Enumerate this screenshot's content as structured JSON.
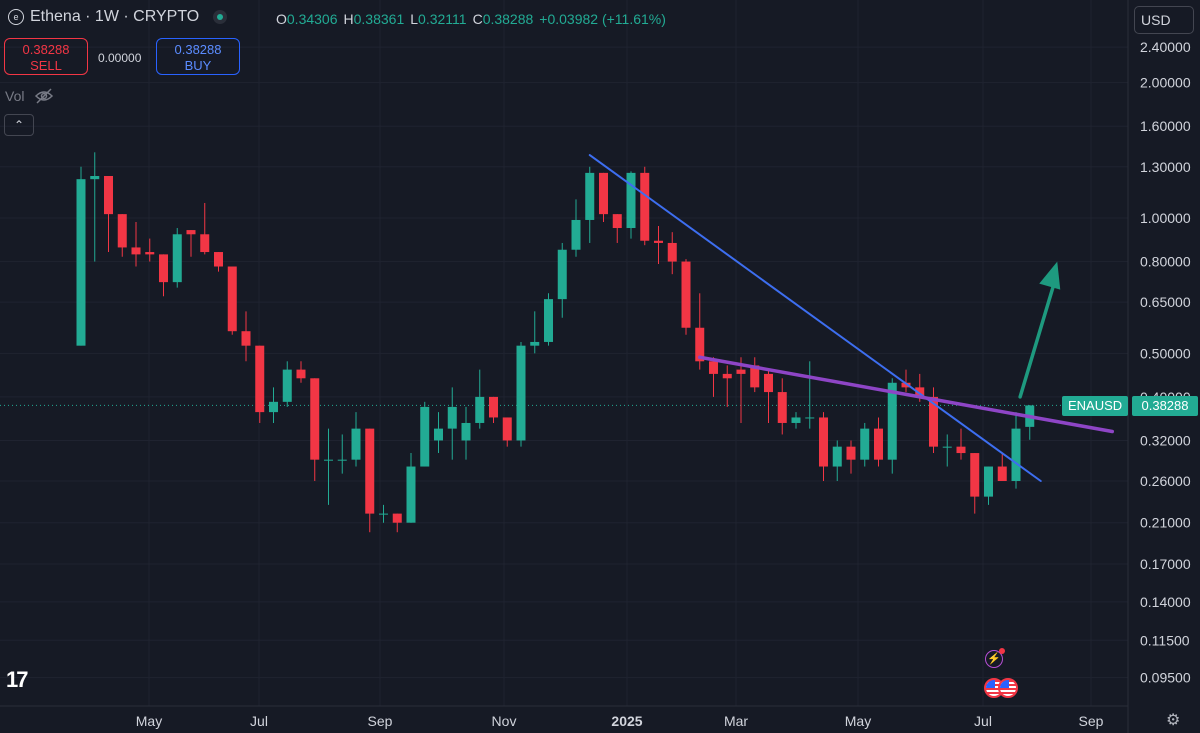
{
  "header": {
    "title": "Ethena · 1W · CRYPTO",
    "logo_icon": "ethena-logo-icon",
    "market_status_icon": "market-open-dot-icon",
    "ohlc": {
      "o_label": "O",
      "o_value": "0.34306",
      "h_label": "H",
      "h_value": "0.38361",
      "l_label": "L",
      "l_value": "0.32111",
      "c_label": "C",
      "c_value": "0.38288",
      "change": "+0.03982 (+11.61%)"
    }
  },
  "trade": {
    "sell_price": "0.38288",
    "sell_label": "SELL",
    "spread": "0.00000",
    "buy_price": "0.38288",
    "buy_label": "BUY"
  },
  "volume": {
    "label": "Vol",
    "toggle_icon": "eye-hidden-icon"
  },
  "collapse": {
    "icon": "chevron-up-icon",
    "glyph": "⌃"
  },
  "currency": "USD",
  "footer": {
    "tv_logo": "17",
    "settings_icon": "gear-icon",
    "gear_glyph": "⚙"
  },
  "last_price": {
    "symbol": "ENAUSD",
    "value": "0.38288"
  },
  "colors": {
    "up": "#22ab94",
    "down": "#f23645",
    "background": "#161a25",
    "trendline_blue": "#3d6ef0",
    "trendline_purple": "#8e45c6",
    "arrow": "#1e9a7f",
    "grid": "#1f2330"
  },
  "events": [
    "flash-event-icon",
    "us-flag-event-icon"
  ],
  "chart_data": {
    "type": "candlestick",
    "interval": "1W",
    "scale": "log",
    "y_ticks": [
      "2.40000",
      "2.00000",
      "1.60000",
      "1.30000",
      "1.00000",
      "0.80000",
      "0.65000",
      "0.50000",
      "0.40000",
      "0.32000",
      "0.26000",
      "0.21000",
      "0.17000",
      "0.14000",
      "0.11500",
      "0.09500"
    ],
    "x_ticks": [
      "May",
      "Jul",
      "Sep",
      "Nov",
      "2025",
      "Mar",
      "May",
      "Jul",
      "Sep"
    ],
    "candles": [
      {
        "o": 0.52,
        "h": 1.3,
        "l": 0.52,
        "c": 1.22
      },
      {
        "o": 1.22,
        "h": 1.4,
        "l": 0.8,
        "c": 1.24
      },
      {
        "o": 1.24,
        "h": 1.24,
        "l": 0.84,
        "c": 1.02
      },
      {
        "o": 1.02,
        "h": 1.02,
        "l": 0.82,
        "c": 0.86
      },
      {
        "o": 0.86,
        "h": 0.98,
        "l": 0.78,
        "c": 0.83
      },
      {
        "o": 0.84,
        "h": 0.9,
        "l": 0.8,
        "c": 0.83
      },
      {
        "o": 0.83,
        "h": 0.83,
        "l": 0.67,
        "c": 0.72
      },
      {
        "o": 0.72,
        "h": 0.95,
        "l": 0.7,
        "c": 0.92
      },
      {
        "o": 0.94,
        "h": 0.94,
        "l": 0.82,
        "c": 0.92
      },
      {
        "o": 0.92,
        "h": 1.08,
        "l": 0.83,
        "c": 0.84
      },
      {
        "o": 0.84,
        "h": 0.84,
        "l": 0.76,
        "c": 0.78
      },
      {
        "o": 0.78,
        "h": 0.78,
        "l": 0.55,
        "c": 0.56
      },
      {
        "o": 0.56,
        "h": 0.62,
        "l": 0.48,
        "c": 0.52
      },
      {
        "o": 0.52,
        "h": 0.52,
        "l": 0.35,
        "c": 0.37
      },
      {
        "o": 0.37,
        "h": 0.42,
        "l": 0.35,
        "c": 0.39
      },
      {
        "o": 0.39,
        "h": 0.48,
        "l": 0.38,
        "c": 0.46
      },
      {
        "o": 0.46,
        "h": 0.48,
        "l": 0.43,
        "c": 0.44
      },
      {
        "o": 0.44,
        "h": 0.44,
        "l": 0.26,
        "c": 0.29
      },
      {
        "o": 0.29,
        "h": 0.34,
        "l": 0.23,
        "c": 0.29
      },
      {
        "o": 0.29,
        "h": 0.33,
        "l": 0.27,
        "c": 0.29
      },
      {
        "o": 0.29,
        "h": 0.37,
        "l": 0.28,
        "c": 0.34
      },
      {
        "o": 0.34,
        "h": 0.34,
        "l": 0.2,
        "c": 0.22
      },
      {
        "o": 0.22,
        "h": 0.23,
        "l": 0.21,
        "c": 0.22
      },
      {
        "o": 0.22,
        "h": 0.22,
        "l": 0.2,
        "c": 0.21
      },
      {
        "o": 0.21,
        "h": 0.3,
        "l": 0.21,
        "c": 0.28
      },
      {
        "o": 0.28,
        "h": 0.39,
        "l": 0.28,
        "c": 0.38
      },
      {
        "o": 0.32,
        "h": 0.37,
        "l": 0.3,
        "c": 0.34
      },
      {
        "o": 0.34,
        "h": 0.42,
        "l": 0.29,
        "c": 0.38
      },
      {
        "o": 0.32,
        "h": 0.38,
        "l": 0.29,
        "c": 0.35
      },
      {
        "o": 0.35,
        "h": 0.46,
        "l": 0.34,
        "c": 0.4
      },
      {
        "o": 0.4,
        "h": 0.4,
        "l": 0.35,
        "c": 0.36
      },
      {
        "o": 0.36,
        "h": 0.36,
        "l": 0.31,
        "c": 0.32
      },
      {
        "o": 0.32,
        "h": 0.53,
        "l": 0.31,
        "c": 0.52
      },
      {
        "o": 0.52,
        "h": 0.62,
        "l": 0.5,
        "c": 0.53
      },
      {
        "o": 0.53,
        "h": 0.68,
        "l": 0.52,
        "c": 0.66
      },
      {
        "o": 0.66,
        "h": 0.88,
        "l": 0.6,
        "c": 0.85
      },
      {
        "o": 0.85,
        "h": 1.1,
        "l": 0.82,
        "c": 0.99
      },
      {
        "o": 0.99,
        "h": 1.3,
        "l": 0.88,
        "c": 1.26
      },
      {
        "o": 1.26,
        "h": 1.26,
        "l": 0.98,
        "c": 1.02
      },
      {
        "o": 1.02,
        "h": 1.02,
        "l": 0.88,
        "c": 0.95
      },
      {
        "o": 0.95,
        "h": 1.27,
        "l": 0.9,
        "c": 1.26
      },
      {
        "o": 1.26,
        "h": 1.3,
        "l": 0.87,
        "c": 0.89
      },
      {
        "o": 0.89,
        "h": 0.96,
        "l": 0.79,
        "c": 0.88
      },
      {
        "o": 0.88,
        "h": 0.93,
        "l": 0.75,
        "c": 0.8
      },
      {
        "o": 0.8,
        "h": 0.81,
        "l": 0.55,
        "c": 0.57
      },
      {
        "o": 0.57,
        "h": 0.68,
        "l": 0.46,
        "c": 0.48
      },
      {
        "o": 0.48,
        "h": 0.49,
        "l": 0.4,
        "c": 0.45
      },
      {
        "o": 0.45,
        "h": 0.47,
        "l": 0.38,
        "c": 0.44
      },
      {
        "o": 0.46,
        "h": 0.49,
        "l": 0.35,
        "c": 0.45
      },
      {
        "o": 0.47,
        "h": 0.49,
        "l": 0.41,
        "c": 0.42
      },
      {
        "o": 0.45,
        "h": 0.46,
        "l": 0.35,
        "c": 0.41
      },
      {
        "o": 0.41,
        "h": 0.44,
        "l": 0.33,
        "c": 0.35
      },
      {
        "o": 0.35,
        "h": 0.37,
        "l": 0.34,
        "c": 0.36
      },
      {
        "o": 0.36,
        "h": 0.48,
        "l": 0.34,
        "c": 0.36
      },
      {
        "o": 0.36,
        "h": 0.37,
        "l": 0.26,
        "c": 0.28
      },
      {
        "o": 0.28,
        "h": 0.32,
        "l": 0.26,
        "c": 0.31
      },
      {
        "o": 0.31,
        "h": 0.32,
        "l": 0.27,
        "c": 0.29
      },
      {
        "o": 0.29,
        "h": 0.35,
        "l": 0.28,
        "c": 0.34
      },
      {
        "o": 0.34,
        "h": 0.36,
        "l": 0.28,
        "c": 0.29
      },
      {
        "o": 0.29,
        "h": 0.44,
        "l": 0.27,
        "c": 0.43
      },
      {
        "o": 0.43,
        "h": 0.46,
        "l": 0.41,
        "c": 0.42
      },
      {
        "o": 0.42,
        "h": 0.45,
        "l": 0.39,
        "c": 0.4
      },
      {
        "o": 0.4,
        "h": 0.42,
        "l": 0.3,
        "c": 0.31
      },
      {
        "o": 0.31,
        "h": 0.33,
        "l": 0.28,
        "c": 0.31
      },
      {
        "o": 0.31,
        "h": 0.34,
        "l": 0.29,
        "c": 0.3
      },
      {
        "o": 0.3,
        "h": 0.3,
        "l": 0.22,
        "c": 0.24
      },
      {
        "o": 0.24,
        "h": 0.28,
        "l": 0.23,
        "c": 0.28
      },
      {
        "o": 0.28,
        "h": 0.3,
        "l": 0.26,
        "c": 0.26
      },
      {
        "o": 0.26,
        "h": 0.37,
        "l": 0.25,
        "c": 0.34
      },
      {
        "o": 0.34306,
        "h": 0.38361,
        "l": 0.32111,
        "c": 0.38288
      }
    ],
    "trendlines": [
      {
        "name": "descending-blue",
        "color": "#3d6ef0",
        "from": {
          "i": 37,
          "price": 1.38
        },
        "to": {
          "i": 69.8,
          "price": 0.26
        }
      },
      {
        "name": "descending-purple",
        "color": "#8e45c6",
        "from": {
          "i": 45,
          "price": 0.49
        },
        "to": {
          "i": 75,
          "price": 0.335
        }
      }
    ],
    "projection_arrow": {
      "from": {
        "i": 68.3,
        "price": 0.4
      },
      "to": {
        "i": 71,
        "price": 0.8
      },
      "color": "#1e9a7f"
    },
    "last_price_line": 0.38288
  }
}
